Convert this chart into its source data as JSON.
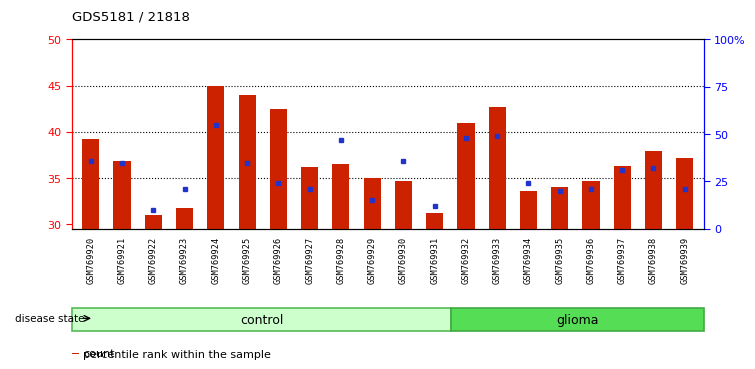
{
  "title": "GDS5181 / 21818",
  "samples": [
    "GSM769920",
    "GSM769921",
    "GSM769922",
    "GSM769923",
    "GSM769924",
    "GSM769925",
    "GSM769926",
    "GSM769927",
    "GSM769928",
    "GSM769929",
    "GSM769930",
    "GSM769931",
    "GSM769932",
    "GSM769933",
    "GSM769934",
    "GSM769935",
    "GSM769936",
    "GSM769937",
    "GSM769938",
    "GSM769939"
  ],
  "counts": [
    39.2,
    36.8,
    31.0,
    31.8,
    45.0,
    44.0,
    42.5,
    36.2,
    36.5,
    35.0,
    34.7,
    31.2,
    41.0,
    42.7,
    33.6,
    34.0,
    34.7,
    36.3,
    37.9,
    37.2
  ],
  "percentiles": [
    36,
    35,
    10,
    21,
    55,
    35,
    24,
    21,
    47,
    15,
    36,
    12,
    48,
    49,
    24,
    20,
    21,
    31,
    32,
    21
  ],
  "control_count": 12,
  "glioma_count": 8,
  "ylim_left": [
    29.5,
    50
  ],
  "ylim_right": [
    0,
    100
  ],
  "left_ticks": [
    30,
    35,
    40,
    45,
    50
  ],
  "right_ticks": [
    0,
    25,
    50,
    75,
    100
  ],
  "right_tick_labels": [
    "0",
    "25",
    "50",
    "75",
    "100%"
  ],
  "bar_color": "#cc2200",
  "dot_color": "#2233cc",
  "control_color": "#ccffcc",
  "glioma_color": "#55dd55",
  "label_bg_color": "#cccccc",
  "bar_width": 0.55,
  "disease_state_label": "disease state",
  "control_label": "control",
  "glioma_label": "glioma",
  "legend_count": "count",
  "legend_percentile": "percentile rank within the sample"
}
